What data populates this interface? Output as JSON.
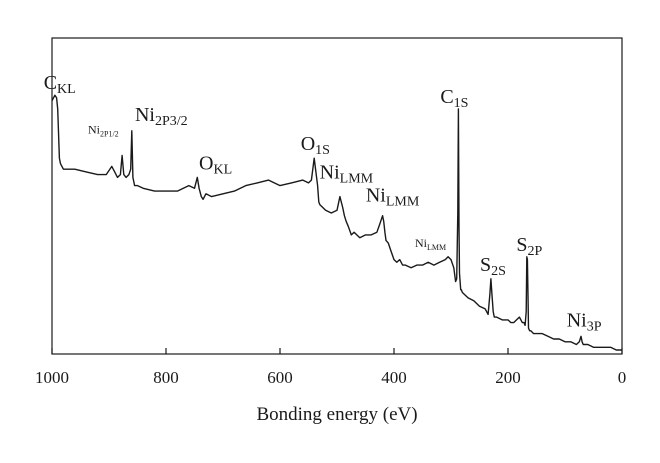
{
  "chart_data": {
    "type": "line",
    "title": "",
    "xlabel": "Bonding energy (eV)",
    "ylabel": "",
    "xlim": [
      1000,
      0
    ],
    "ylim": [
      0,
      100
    ],
    "x_reversed": true,
    "grid": false,
    "y_ticks_shown": false,
    "x_ticks": [
      1000,
      800,
      600,
      400,
      200,
      0
    ],
    "series": [
      {
        "color": "#1a1a1a",
        "x": [
          1000,
          995,
          992,
          990,
          987,
          985,
          980,
          960,
          940,
          920,
          905,
          895,
          890,
          885,
          880,
          877,
          874,
          870,
          865,
          862,
          860,
          858,
          855,
          850,
          840,
          820,
          800,
          780,
          760,
          750,
          745,
          742,
          738,
          735,
          730,
          720,
          700,
          680,
          660,
          640,
          620,
          600,
          580,
          560,
          550,
          545,
          540,
          537,
          534,
          532,
          530,
          525,
          520,
          510,
          500,
          495,
          490,
          487,
          484,
          480,
          475,
          470,
          460,
          450,
          440,
          430,
          425,
          420,
          418,
          416,
          414,
          410,
          405,
          400,
          395,
          390,
          385,
          380,
          370,
          360,
          350,
          340,
          330,
          320,
          310,
          305,
          300,
          295,
          292,
          290,
          288,
          287,
          286,
          285,
          284,
          283,
          282,
          280,
          275,
          270,
          260,
          250,
          240,
          235,
          232,
          230,
          228,
          226,
          224,
          220,
          210,
          200,
          195,
          190,
          185,
          180,
          175,
          172,
          170,
          168,
          167,
          166,
          165,
          164,
          162,
          160,
          155,
          150,
          140,
          130,
          120,
          110,
          100,
          90,
          80,
          75,
          72,
          70,
          68,
          65,
          60,
          50,
          40,
          30,
          20,
          10,
          0
        ],
        "y": [
          91,
          93,
          92,
          88,
          70,
          68,
          66,
          66,
          65,
          64,
          64,
          67,
          65,
          63,
          64,
          71,
          64,
          63,
          64,
          66,
          80,
          63,
          60,
          60,
          59,
          58,
          58,
          58,
          60,
          59,
          63,
          59,
          56,
          55,
          57,
          56,
          57,
          58,
          60,
          61,
          62,
          60,
          61,
          62,
          61,
          62,
          70,
          65,
          60,
          54,
          53,
          52,
          51,
          50,
          51,
          56,
          52,
          49,
          47,
          45,
          42,
          43,
          41,
          42,
          42,
          43,
          46,
          49,
          47,
          43,
          40,
          39,
          36,
          33,
          32,
          33,
          31,
          31,
          30,
          31,
          31,
          32,
          31,
          32,
          33,
          34,
          33,
          30,
          25,
          26,
          50,
          88,
          45,
          28,
          25,
          22,
          22,
          21,
          20,
          19,
          18,
          16,
          15,
          13,
          20,
          26,
          20,
          14,
          12,
          12,
          11,
          11,
          10,
          10,
          11,
          12,
          10,
          10,
          9,
          14,
          34,
          33,
          20,
          8,
          7,
          7,
          6,
          6,
          6,
          5,
          4,
          4,
          3,
          3,
          2,
          3,
          5,
          3,
          2,
          2,
          2,
          1,
          1,
          1,
          1,
          0,
          0
        ]
      }
    ],
    "annotations": [
      {
        "main": "C",
        "sub": "KL",
        "x": 990,
        "y": 93
      },
      {
        "main": "Ni",
        "sub": "2P1/2",
        "x": 876,
        "y": 71
      },
      {
        "main": "Ni",
        "sub": "2P3/2",
        "x": 858,
        "y": 80
      },
      {
        "main": "O",
        "sub": "KL",
        "x": 742,
        "y": 63
      },
      {
        "main": "O",
        "sub": "1S",
        "x": 538,
        "y": 70
      },
      {
        "main": "Ni",
        "sub": "LMM",
        "x": 487,
        "y": 56
      },
      {
        "main": "Ni",
        "sub": "LMM",
        "x": 420,
        "y": 49
      },
      {
        "main": "Ni",
        "sub": "LMM",
        "x": 305,
        "y": 34
      },
      {
        "main": "C",
        "sub": "1S",
        "x": 287,
        "y": 88
      },
      {
        "main": "S",
        "sub": "2S",
        "x": 230,
        "y": 26
      },
      {
        "main": "S",
        "sub": "2P",
        "x": 166,
        "y": 34
      },
      {
        "main": "Ni",
        "sub": "3P",
        "x": 70,
        "y": 5
      }
    ]
  }
}
